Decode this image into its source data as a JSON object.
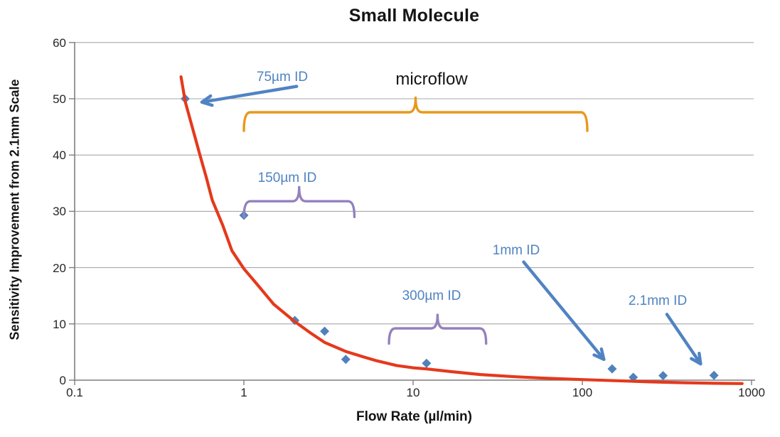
{
  "chart_data": {
    "type": "scatter",
    "title": "Small Molecule",
    "xlabel": "Flow Rate (µl/min)",
    "ylabel": "Sensitivity Improvement from 2.1mm Scale",
    "x_scale": "log",
    "xlim": [
      0.1,
      1000
    ],
    "ylim": [
      0,
      60
    ],
    "x_ticks": [
      0.1,
      1,
      10,
      100,
      1000
    ],
    "x_tick_labels": [
      "0.1",
      "1",
      "10",
      "100",
      "1000"
    ],
    "y_ticks": [
      0,
      10,
      20,
      30,
      40,
      50,
      60
    ],
    "grid": "horizontal-only",
    "legend": "none",
    "series": [
      {
        "name": "measured-sensitivity-points",
        "type": "scatter",
        "marker": "diamond",
        "points": [
          [
            0.45,
            50
          ],
          [
            1,
            29.3
          ],
          [
            2,
            10.6
          ],
          [
            3,
            8.7
          ],
          [
            4,
            3.7
          ],
          [
            12,
            3
          ],
          [
            150,
            2
          ],
          [
            200,
            0.5
          ],
          [
            300,
            0.8
          ],
          [
            600,
            0.85
          ]
        ]
      },
      {
        "name": "trend-curve",
        "type": "line",
        "points": [
          [
            0.425,
            53.9
          ],
          [
            0.45,
            49.5
          ],
          [
            0.5,
            44.5
          ],
          [
            0.55,
            40
          ],
          [
            0.6,
            36
          ],
          [
            0.65,
            32
          ],
          [
            0.75,
            27.5
          ],
          [
            0.85,
            23
          ],
          [
            1,
            19.8
          ],
          [
            1.2,
            17
          ],
          [
            1.5,
            13.5
          ],
          [
            2,
            10.4
          ],
          [
            2.5,
            8.3
          ],
          [
            3,
            6.7
          ],
          [
            4,
            5.1
          ],
          [
            5,
            4.2
          ],
          [
            6,
            3.5
          ],
          [
            8,
            2.6
          ],
          [
            10,
            2.2
          ],
          [
            12,
            2
          ],
          [
            17,
            1.5
          ],
          [
            25,
            1
          ],
          [
            40,
            0.6
          ],
          [
            60,
            0.35
          ],
          [
            100,
            0.1
          ],
          [
            160,
            -0.1
          ],
          [
            250,
            -0.3
          ],
          [
            400,
            -0.45
          ],
          [
            600,
            -0.55
          ],
          [
            880,
            -0.6
          ]
        ]
      }
    ],
    "annotations": {
      "labels": {
        "microflow": {
          "text": "microflow"
        },
        "id75": {
          "text": "75µm ID",
          "points_to": [
            0.45,
            50
          ]
        },
        "id150": {
          "text": "150µm ID",
          "range": [
            1,
            4.5
          ]
        },
        "id300": {
          "text": "300µm ID",
          "range": [
            7.2,
            27
          ]
        },
        "id1mm": {
          "text": "1mm ID",
          "points_to": [
            150,
            2
          ]
        },
        "id21mm": {
          "text": "2.1mm ID",
          "points_to": [
            600,
            0.85
          ]
        }
      },
      "braces": [
        {
          "id": "microflow-range",
          "x_start": 1,
          "x_end": 107,
          "y": 47.6,
          "peak_to": 50.2,
          "ends_to": 44.3,
          "color": "#e8981e"
        },
        {
          "id": "150um-range",
          "x_start": 1,
          "x_end": 4.5,
          "y": 31.8,
          "peak_to": 34.3,
          "ends_to": 29.0,
          "color": "#9481bd"
        },
        {
          "id": "300um-range",
          "x_start": 7.2,
          "x_end": 27,
          "y": 9.2,
          "peak_to": 11.6,
          "ends_to": 6.5,
          "color": "#9481bd"
        }
      ],
      "arrows": [
        {
          "id": "arrow-75um",
          "from": [
            2.05,
            52.2
          ],
          "to": [
            0.565,
            49.4
          ]
        },
        {
          "id": "arrow-1mm",
          "from": [
            45,
            21
          ],
          "to": [
            134,
            3.7
          ]
        },
        {
          "id": "arrow-2.1mm",
          "from": [
            316,
            11.7
          ],
          "to": [
            500,
            2.9
          ]
        }
      ]
    },
    "colors": {
      "trend": "#e5391c",
      "points": "#4f81bd",
      "annotation_blue": "#5083c3",
      "brace_orange": "#e8981e",
      "brace_purple": "#9481bd",
      "grid": "#a8a8a8",
      "axis": "#7f7f7f",
      "tick_text": "#262626"
    }
  }
}
